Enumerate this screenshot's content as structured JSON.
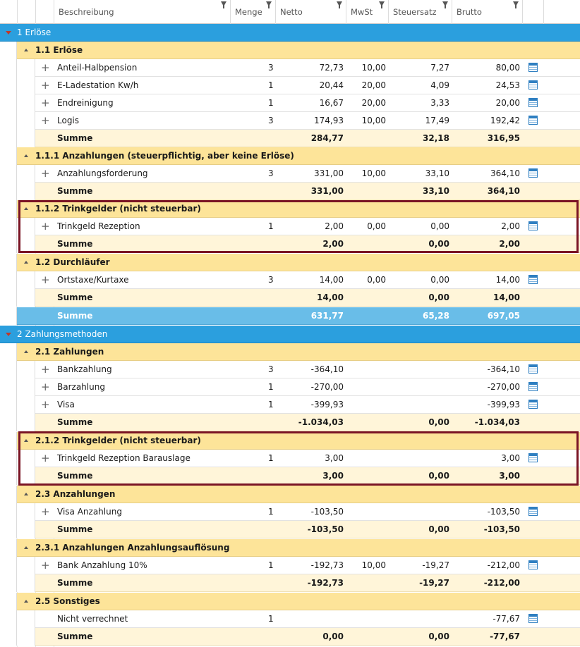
{
  "columns": {
    "beschreibung": "Beschreibung",
    "menge": "Menge",
    "netto": "Netto",
    "mwst": "MwSt",
    "steuersatz": "Steuersatz",
    "brutto": "Brutto"
  },
  "groups": {
    "g1": "1 Erlöse",
    "g1_1": "1.1 Erlöse",
    "g1_1_1": "1.1.1 Anzahlungen (steuerpflichtig, aber keine Erlöse)",
    "g1_1_2": "1.1.2 Trinkgelder (nicht steuerbar)",
    "g1_2": "1.2 Durchläufer",
    "g2": "2 Zahlungsmethoden",
    "g2_1": "2.1 Zahlungen",
    "g2_1_2": "2.1.2 Trinkgelder (nicht steuerbar)",
    "g2_3": "2.3 Anzahlungen",
    "g2_3_1": "2.3.1 Anzahlungen Anzahlungsauflösung",
    "g2_5": "2.5 Sonstiges"
  },
  "rows": [
    {
      "desc": "Anteil-Halbpension",
      "qty": "3",
      "netto": "72,73",
      "mwst": "10,00",
      "steuer": "7,27",
      "brutto": "80,00"
    },
    {
      "desc": "E-Ladestation Kw/h",
      "qty": "1",
      "netto": "20,44",
      "mwst": "20,00",
      "steuer": "4,09",
      "brutto": "24,53"
    },
    {
      "desc": "Endreinigung",
      "qty": "1",
      "netto": "16,67",
      "mwst": "20,00",
      "steuer": "3,33",
      "brutto": "20,00"
    },
    {
      "desc": "Logis",
      "qty": "3",
      "netto": "174,93",
      "mwst": "10,00",
      "steuer": "17,49",
      "brutto": "192,42"
    },
    {
      "desc": "Anzahlungsforderung",
      "qty": "3",
      "netto": "331,00",
      "mwst": "10,00",
      "steuer": "33,10",
      "brutto": "364,10"
    },
    {
      "desc": "Trinkgeld Rezeption",
      "qty": "1",
      "netto": "2,00",
      "mwst": "0,00",
      "steuer": "0,00",
      "brutto": "2,00"
    },
    {
      "desc": "Ortstaxe/Kurtaxe",
      "qty": "3",
      "netto": "14,00",
      "mwst": "0,00",
      "steuer": "0,00",
      "brutto": "14,00"
    },
    {
      "desc": "Bankzahlung",
      "qty": "3",
      "netto": "-364,10",
      "mwst": "",
      "steuer": "",
      "brutto": "-364,10"
    },
    {
      "desc": "Barzahlung",
      "qty": "1",
      "netto": "-270,00",
      "mwst": "",
      "steuer": "",
      "brutto": "-270,00"
    },
    {
      "desc": "Visa",
      "qty": "1",
      "netto": "-399,93",
      "mwst": "",
      "steuer": "",
      "brutto": "-399,93"
    },
    {
      "desc": "Trinkgeld Rezeption Barauslage",
      "qty": "1",
      "netto": "3,00",
      "mwst": "",
      "steuer": "",
      "brutto": "3,00"
    },
    {
      "desc": "Visa Anzahlung",
      "qty": "1",
      "netto": "-103,50",
      "mwst": "",
      "steuer": "",
      "brutto": "-103,50"
    },
    {
      "desc": "Bank Anzahlung 10%",
      "qty": "1",
      "netto": "-192,73",
      "mwst": "10,00",
      "steuer": "-19,27",
      "brutto": "-212,00"
    },
    {
      "desc": "Nicht verrechnet",
      "qty": "1",
      "netto": "",
      "mwst": "",
      "steuer": "",
      "brutto": "-77,67"
    }
  ],
  "sums": [
    {
      "label": "Summe",
      "netto": "284,77",
      "steuer": "32,18",
      "brutto": "316,95"
    },
    {
      "label": "Summe",
      "netto": "331,00",
      "steuer": "33,10",
      "brutto": "364,10"
    },
    {
      "label": "Summe",
      "netto": "2,00",
      "steuer": "0,00",
      "brutto": "2,00"
    },
    {
      "label": "Summe",
      "netto": "14,00",
      "steuer": "0,00",
      "brutto": "14,00"
    },
    {
      "label": "Summe",
      "netto": "631,77",
      "steuer": "65,28",
      "brutto": "697,05"
    },
    {
      "label": "Summe",
      "netto": "-1.034,03",
      "steuer": "0,00",
      "brutto": "-1.034,03"
    },
    {
      "label": "Summe",
      "netto": "3,00",
      "steuer": "0,00",
      "brutto": "3,00"
    },
    {
      "label": "Summe",
      "netto": "-103,50",
      "steuer": "0,00",
      "brutto": "-103,50"
    },
    {
      "label": "Summe",
      "netto": "-192,73",
      "steuer": "-19,27",
      "brutto": "-212,00"
    },
    {
      "label": "Summe",
      "netto": "0,00",
      "steuer": "0,00",
      "brutto": "-77,67"
    }
  ],
  "colors": {
    "group_blue": "#2b9fde",
    "group_yellow": "#fde499",
    "sum_cream": "#fff5d9",
    "total_blue": "#69bde8",
    "highlight": "#7a1424"
  },
  "icons": {
    "expand": "plus-icon",
    "collapse": "triangle-icon",
    "filter": "filter-icon",
    "calc": "calculator-icon"
  }
}
